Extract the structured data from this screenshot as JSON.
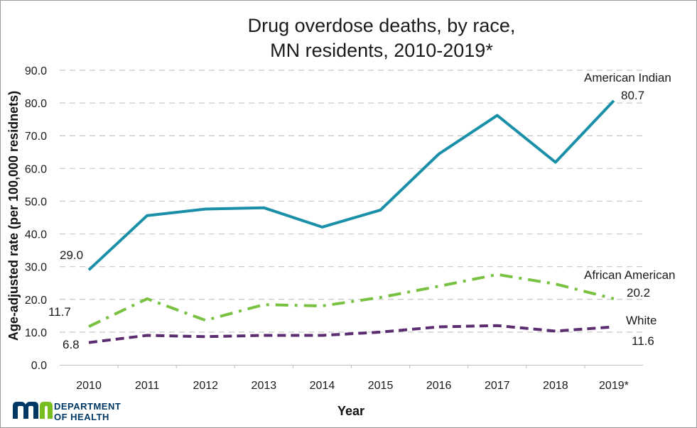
{
  "chart_data": {
    "type": "line",
    "title_lines": [
      "Drug overdose deaths, by race,",
      "MN residents, 2010-2019*"
    ],
    "xlabel": "Year",
    "ylabel": "Age-adjusted rate (per 100,000 residnets)",
    "categories": [
      "2010",
      "2011",
      "2012",
      "2013",
      "2014",
      "2015",
      "2016",
      "2017",
      "2018",
      "2019*"
    ],
    "ylim": [
      0,
      90
    ],
    "yticks": [
      "0.0",
      "10.0",
      "20.0",
      "30.0",
      "40.0",
      "50.0",
      "60.0",
      "70.0",
      "80.0",
      "90.0"
    ],
    "grid": "horizontal dashed",
    "series": [
      {
        "name": "American Indian",
        "values": [
          29.0,
          45.6,
          47.6,
          48.0,
          42.1,
          47.3,
          64.4,
          76.2,
          61.9,
          80.7
        ],
        "color": "#1a8fa8",
        "dash": "solid",
        "start_label": "29.0",
        "end_label": "80.7"
      },
      {
        "name": "African American",
        "values": [
          11.7,
          20.2,
          13.6,
          18.4,
          18.0,
          20.6,
          24.0,
          27.6,
          24.7,
          20.2
        ],
        "color": "#78c141",
        "dash": "dash-dot",
        "start_label": "11.7",
        "end_label": "20.2"
      },
      {
        "name": "White",
        "values": [
          6.8,
          9.0,
          8.6,
          9.0,
          9.0,
          10.0,
          11.6,
          12.0,
          10.3,
          11.6
        ],
        "color": "#5b2c6f",
        "dash": "dashed",
        "start_label": "6.8",
        "end_label": "11.6"
      }
    ]
  },
  "logo": {
    "line1": "DEPARTMENT",
    "line2": "OF HEALTH",
    "colors": [
      "#003865",
      "#78be20"
    ]
  }
}
